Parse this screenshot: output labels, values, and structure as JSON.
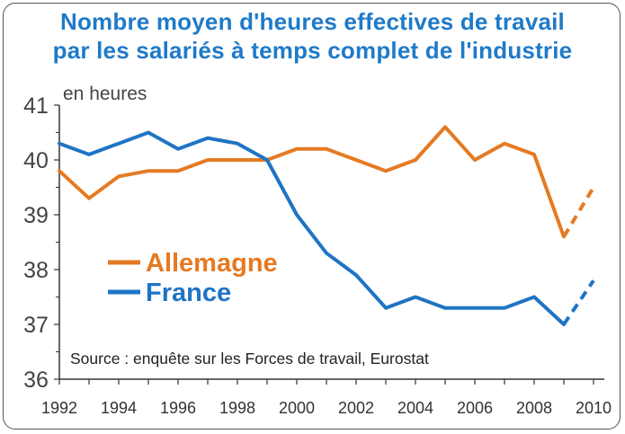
{
  "chart_data": {
    "type": "line",
    "title_line1": "Nombre moyen d'heures effectives de travail",
    "title_line2": "par les salariés à temps complet de l'industrie",
    "ylabel": "en heures",
    "ylim": [
      36,
      41
    ],
    "y_ticks": [
      "36",
      "37",
      "38",
      "39",
      "40",
      "41"
    ],
    "xlim": [
      1992,
      2010
    ],
    "x_ticks": [
      "1992",
      "1994",
      "1996",
      "1998",
      "2000",
      "2002",
      "2004",
      "2006",
      "2008",
      "2010"
    ],
    "x": [
      1992,
      1993,
      1994,
      1995,
      1996,
      1997,
      1998,
      1999,
      2000,
      2001,
      2002,
      2003,
      2004,
      2005,
      2006,
      2007,
      2008,
      2009,
      2010
    ],
    "series": [
      {
        "name": "Allemagne",
        "color": "#e57a22",
        "values": [
          39.8,
          39.3,
          39.7,
          39.8,
          39.8,
          40.0,
          40.0,
          40.0,
          40.2,
          40.2,
          40.0,
          39.8,
          40.0,
          40.6,
          40.0,
          40.3,
          40.1,
          38.6,
          39.5
        ],
        "dashed_from_index": 17
      },
      {
        "name": "France",
        "color": "#1f74c4",
        "values": [
          40.3,
          40.1,
          40.3,
          40.5,
          40.2,
          40.4,
          40.3,
          40.0,
          39.0,
          38.3,
          37.9,
          37.3,
          37.5,
          37.3,
          37.3,
          37.3,
          37.5,
          37.0,
          37.8
        ],
        "dashed_from_index": 17
      }
    ],
    "legend_position": "left-middle",
    "source": "Source : enquête sur les Forces de travail, Eurostat",
    "axis_color": "#333333",
    "tick_text_color": "#444444"
  }
}
